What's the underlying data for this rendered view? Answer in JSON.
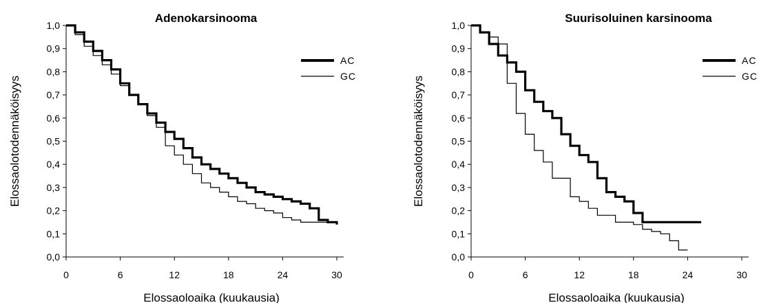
{
  "chart_data": [
    {
      "type": "line",
      "title": "Adenokarsinooma",
      "xlabel": "Elossaoloaika (kuukausia)",
      "ylabel": "Elossaolotodennäköisyys",
      "xlim": [
        0,
        30
      ],
      "ylim": [
        0,
        1
      ],
      "xticks": [
        "0",
        "6",
        "12",
        "18",
        "24",
        "30"
      ],
      "yticks": [
        "0,0",
        "0,1",
        "0,2",
        "0,3",
        "0,4",
        "0,5",
        "0,6",
        "0,7",
        "0,8",
        "0,9",
        "1,0"
      ],
      "legend_position": "top-right",
      "series": [
        {
          "name": "AC",
          "style": "thick",
          "x": [
            0,
            1,
            2,
            3,
            4,
            5,
            6,
            7,
            8,
            9,
            10,
            11,
            12,
            13,
            14,
            15,
            16,
            17,
            18,
            19,
            20,
            21,
            22,
            23,
            24,
            25,
            26,
            27,
            28,
            29,
            30
          ],
          "y": [
            1.0,
            0.97,
            0.93,
            0.89,
            0.85,
            0.81,
            0.75,
            0.7,
            0.66,
            0.62,
            0.58,
            0.54,
            0.51,
            0.47,
            0.43,
            0.4,
            0.38,
            0.36,
            0.34,
            0.32,
            0.3,
            0.28,
            0.27,
            0.26,
            0.25,
            0.24,
            0.23,
            0.21,
            0.16,
            0.15,
            0.14
          ]
        },
        {
          "name": "GC",
          "style": "thin",
          "x": [
            0,
            1,
            2,
            3,
            4,
            5,
            6,
            7,
            8,
            9,
            10,
            11,
            12,
            13,
            14,
            15,
            16,
            17,
            18,
            19,
            20,
            21,
            22,
            23,
            24,
            25,
            26,
            27,
            28,
            29,
            30
          ],
          "y": [
            1.0,
            0.96,
            0.91,
            0.87,
            0.83,
            0.79,
            0.74,
            0.7,
            0.66,
            0.61,
            0.56,
            0.48,
            0.44,
            0.4,
            0.36,
            0.32,
            0.3,
            0.28,
            0.26,
            0.24,
            0.23,
            0.21,
            0.2,
            0.19,
            0.17,
            0.16,
            0.15,
            0.15,
            0.15,
            0.15,
            0.14
          ]
        }
      ]
    },
    {
      "type": "line",
      "title": "Suurisoluinen karsinooma",
      "xlabel": "Elossaoloaika (kuukausia)",
      "ylabel": "Elossaolotodennäköisyys",
      "xlim": [
        0,
        30
      ],
      "ylim": [
        0,
        1
      ],
      "xticks": [
        "0",
        "6",
        "12",
        "18",
        "24",
        "30"
      ],
      "yticks": [
        "0,0",
        "0,1",
        "0,2",
        "0,3",
        "0,4",
        "0,5",
        "0,6",
        "0,7",
        "0,8",
        "0,9",
        "1,0"
      ],
      "legend_position": "top-right",
      "series": [
        {
          "name": "AC",
          "style": "thick",
          "x": [
            0,
            1,
            2,
            3,
            4,
            5,
            6,
            7,
            8,
            9,
            10,
            11,
            12,
            13,
            14,
            15,
            16,
            17,
            18,
            19,
            20,
            21,
            22,
            23,
            24,
            25.5
          ],
          "y": [
            1.0,
            0.97,
            0.92,
            0.87,
            0.84,
            0.8,
            0.72,
            0.67,
            0.63,
            0.6,
            0.53,
            0.48,
            0.44,
            0.41,
            0.34,
            0.28,
            0.26,
            0.24,
            0.19,
            0.15,
            0.15,
            0.15,
            0.15,
            0.15,
            0.15,
            0.15
          ]
        },
        {
          "name": "GC",
          "style": "thin",
          "x": [
            0,
            1,
            2,
            3,
            4,
            5,
            6,
            7,
            8,
            9,
            10,
            11,
            12,
            13,
            14,
            15,
            16,
            17,
            18,
            19,
            20,
            21,
            22,
            23,
            24
          ],
          "y": [
            1.0,
            0.97,
            0.95,
            0.92,
            0.75,
            0.62,
            0.53,
            0.46,
            0.41,
            0.34,
            0.34,
            0.26,
            0.24,
            0.21,
            0.18,
            0.18,
            0.15,
            0.15,
            0.14,
            0.12,
            0.11,
            0.1,
            0.07,
            0.03,
            0.03
          ]
        }
      ]
    }
  ]
}
